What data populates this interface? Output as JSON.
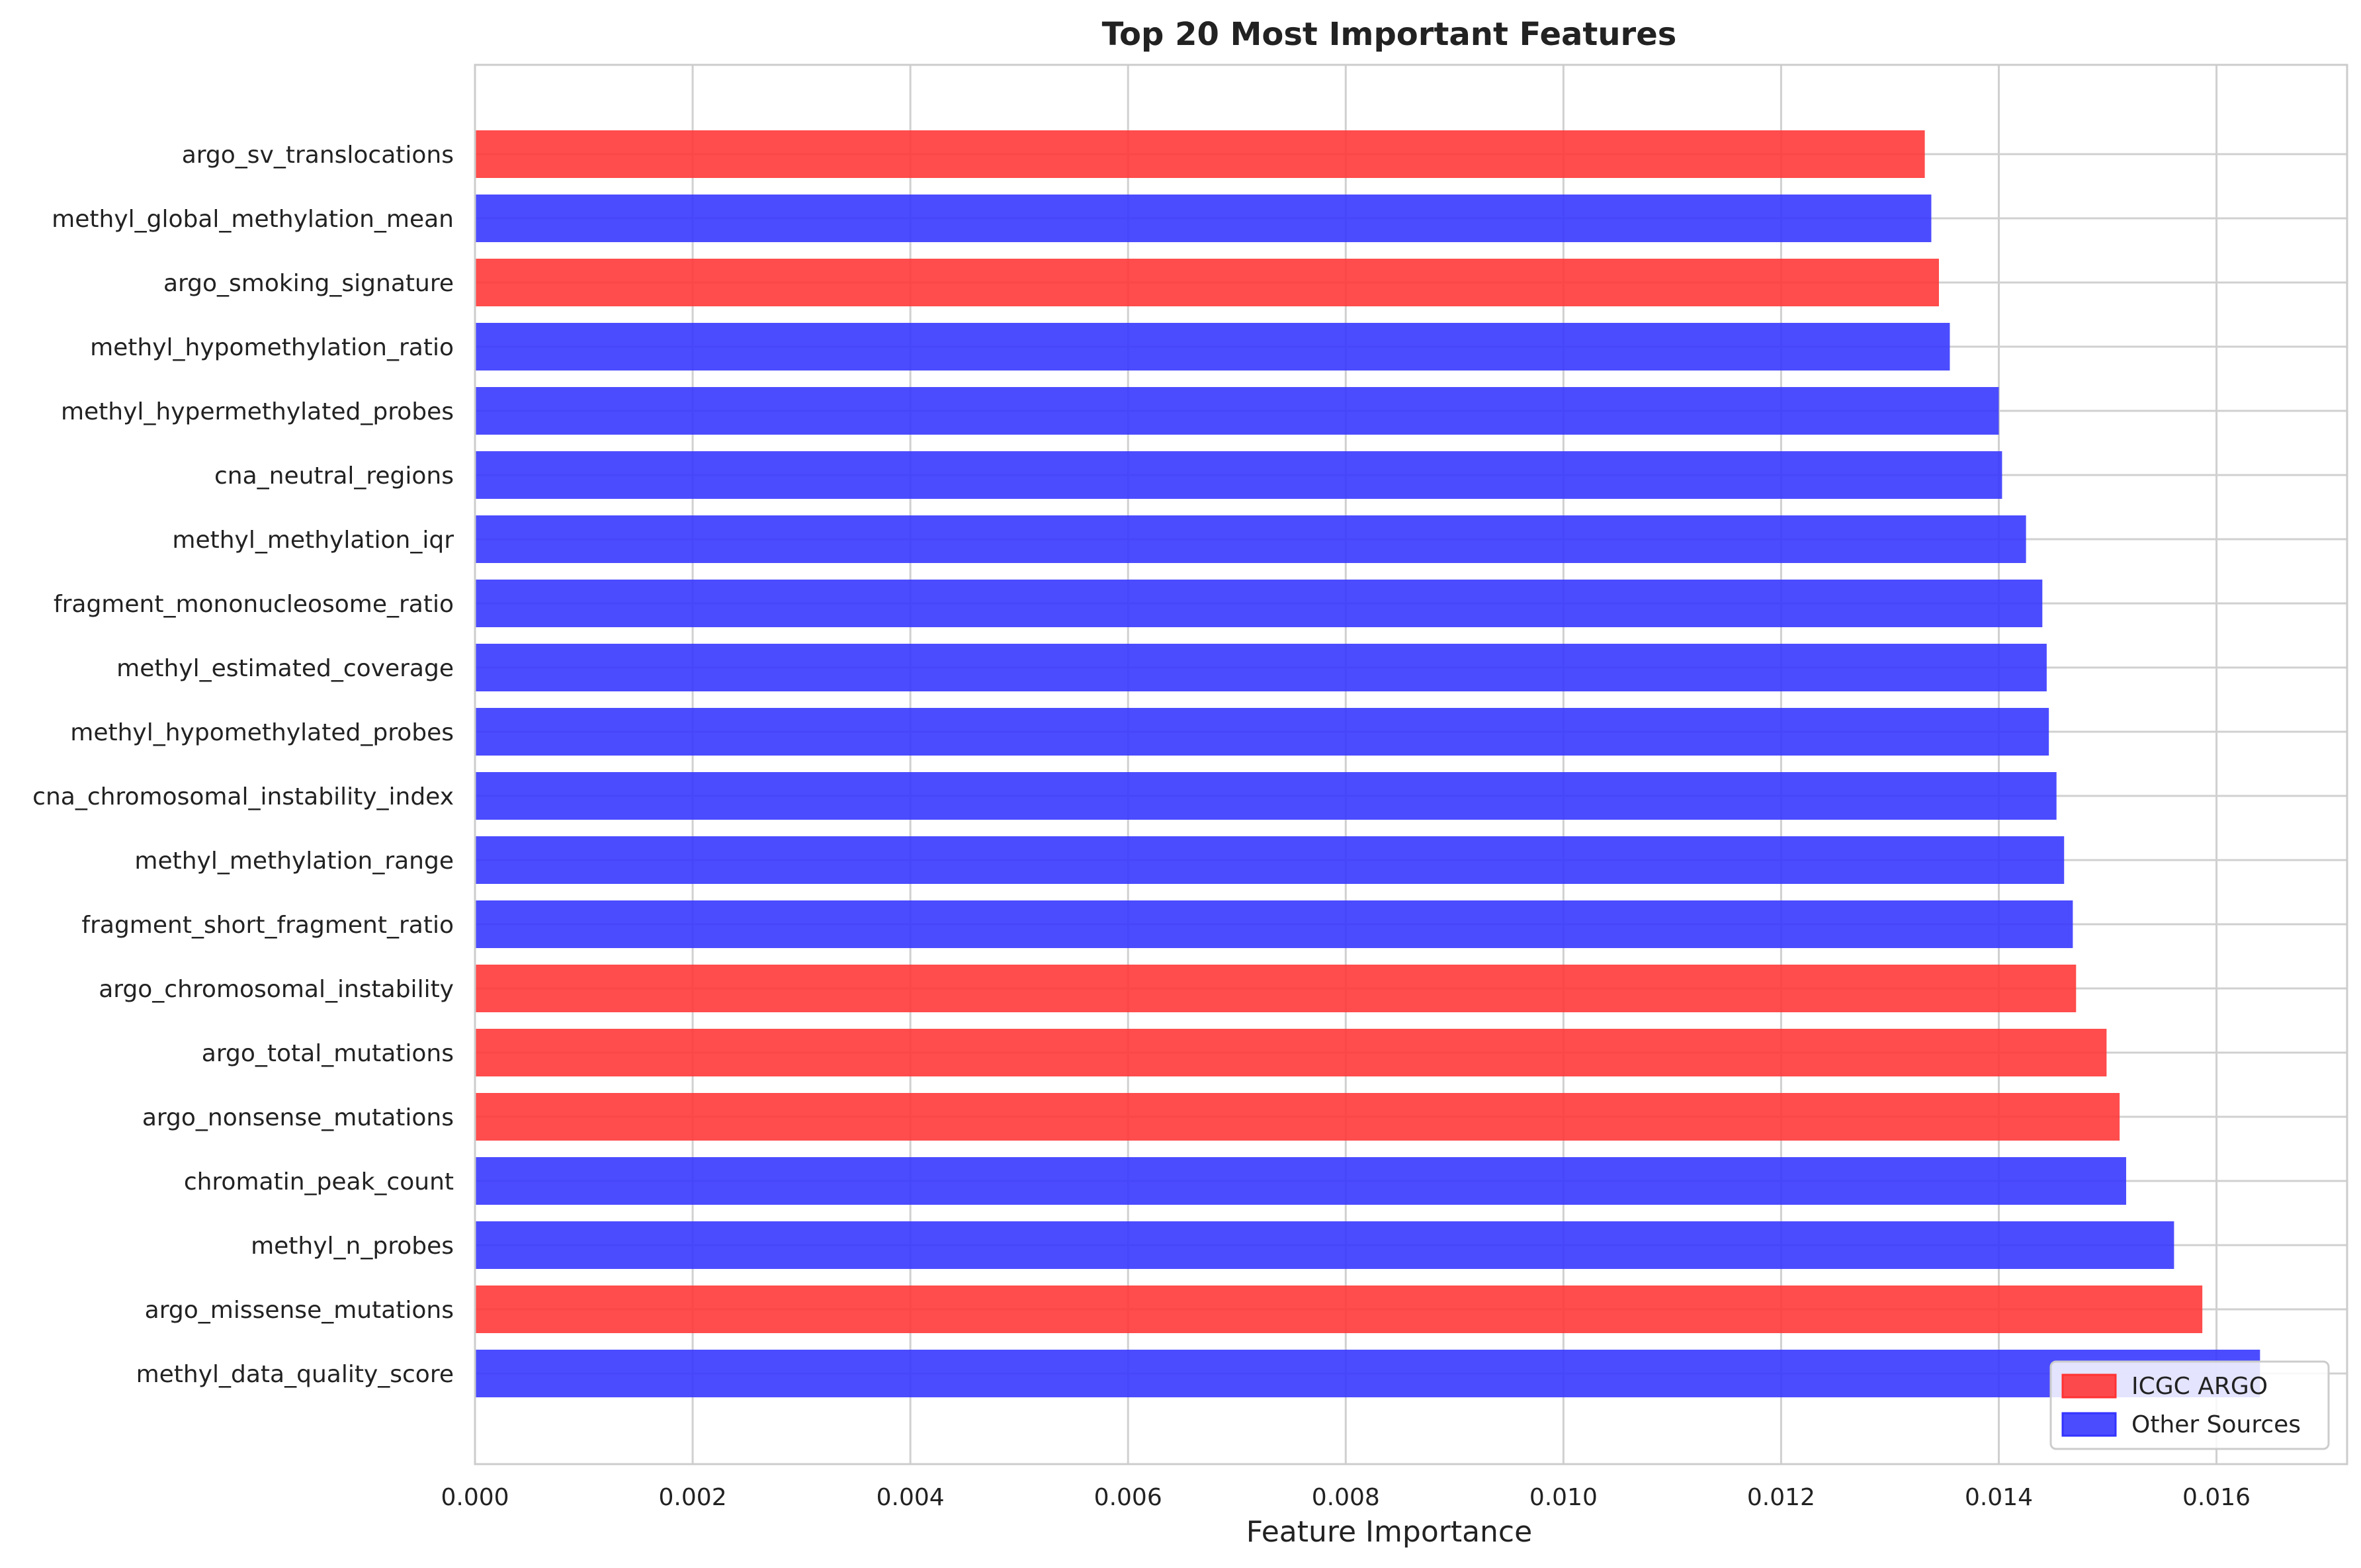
{
  "chart_data": {
    "type": "bar",
    "orientation": "horizontal",
    "title": "Top 20 Most Important Features",
    "xlabel": "Feature Importance",
    "ylabel": "",
    "xlim": [
      0,
      0.0172
    ],
    "xticks": [
      "0.000",
      "0.002",
      "0.004",
      "0.006",
      "0.008",
      "0.010",
      "0.012",
      "0.014",
      "0.016"
    ],
    "grid": true,
    "legend_position": "bottom-right",
    "legend": [
      {
        "name": "ICGC ARGO",
        "color": "#ff3333"
      },
      {
        "name": "Other Sources",
        "color": "#3333ff"
      }
    ],
    "bars": [
      {
        "label": "argo_sv_translocations",
        "value": 0.01332,
        "source": "ICGC ARGO"
      },
      {
        "label": "methyl_global_methylation_mean",
        "value": 0.01338,
        "source": "Other Sources"
      },
      {
        "label": "argo_smoking_signature",
        "value": 0.01345,
        "source": "ICGC ARGO"
      },
      {
        "label": "methyl_hypomethylation_ratio",
        "value": 0.01355,
        "source": "Other Sources"
      },
      {
        "label": "methyl_hypermethylated_probes",
        "value": 0.014,
        "source": "Other Sources"
      },
      {
        "label": "cna_neutral_regions",
        "value": 0.01403,
        "source": "Other Sources"
      },
      {
        "label": "methyl_methylation_iqr",
        "value": 0.01425,
        "source": "Other Sources"
      },
      {
        "label": "fragment_mononucleosome_ratio",
        "value": 0.0144,
        "source": "Other Sources"
      },
      {
        "label": "methyl_estimated_coverage",
        "value": 0.01444,
        "source": "Other Sources"
      },
      {
        "label": "methyl_hypomethylated_probes",
        "value": 0.01446,
        "source": "Other Sources"
      },
      {
        "label": "cna_chromosomal_instability_index",
        "value": 0.01453,
        "source": "Other Sources"
      },
      {
        "label": "methyl_methylation_range",
        "value": 0.0146,
        "source": "Other Sources"
      },
      {
        "label": "fragment_short_fragment_ratio",
        "value": 0.01468,
        "source": "Other Sources"
      },
      {
        "label": "argo_chromosomal_instability",
        "value": 0.01471,
        "source": "ICGC ARGO"
      },
      {
        "label": "argo_total_mutations",
        "value": 0.01499,
        "source": "ICGC ARGO"
      },
      {
        "label": "argo_nonsense_mutations",
        "value": 0.01511,
        "source": "ICGC ARGO"
      },
      {
        "label": "chromatin_peak_count",
        "value": 0.01517,
        "source": "Other Sources"
      },
      {
        "label": "methyl_n_probes",
        "value": 0.01561,
        "source": "Other Sources"
      },
      {
        "label": "argo_missense_mutations",
        "value": 0.01587,
        "source": "ICGC ARGO"
      },
      {
        "label": "methyl_data_quality_score",
        "value": 0.0164,
        "source": "Other Sources"
      }
    ]
  }
}
